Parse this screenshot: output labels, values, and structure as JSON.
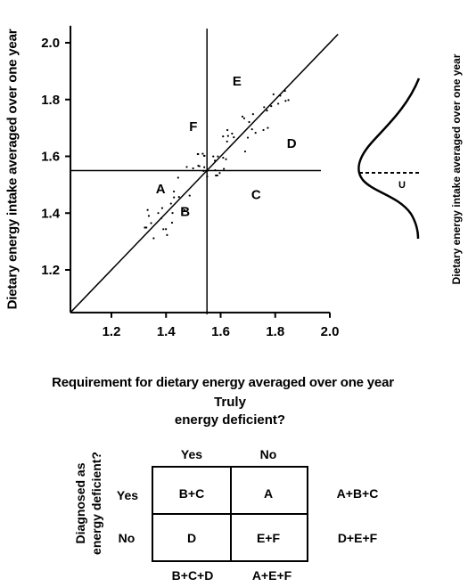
{
  "chart_data": {
    "type": "scatter",
    "xlabel": "Requirement for dietary energy averaged over one year",
    "ylabel": "Dietary energy intake averaged over one year",
    "xlim": [
      1.05,
      2.0
    ],
    "ylim": [
      1.05,
      2.05
    ],
    "xticks": [
      "1.2",
      "1.4",
      "1.6",
      "1.8",
      "2.0"
    ],
    "yticks": [
      "1.2",
      "1.4",
      "1.6",
      "1.8",
      "2.0"
    ],
    "reference_line": "y = x",
    "threshold": 1.55,
    "region_labels": [
      {
        "label": "A",
        "x": 1.38,
        "y": 1.47
      },
      {
        "label": "B",
        "x": 1.47,
        "y": 1.39
      },
      {
        "label": "C",
        "x": 1.73,
        "y": 1.45
      },
      {
        "label": "D",
        "x": 1.86,
        "y": 1.63
      },
      {
        "label": "E",
        "x": 1.66,
        "y": 1.85
      },
      {
        "label": "F",
        "x": 1.5,
        "y": 1.69
      }
    ],
    "side_distribution_label": "Dietary energy intake averaged over one year",
    "side_distribution_marker": "U"
  },
  "matrix": {
    "title_line1": "Truly",
    "title_line2": "energy deficient?",
    "ylabel_line1": "Diagnosed as",
    "ylabel_line2": "energy deficient?",
    "col_yes": "Yes",
    "col_no": "No",
    "row_yes": "Yes",
    "row_no": "No",
    "cell_yes_yes": "B+C",
    "cell_yes_no": "A",
    "cell_no_yes": "D",
    "cell_no_no": "E+F",
    "row_total_yes": "A+B+C",
    "row_total_no": "D+E+F",
    "col_total_yes": "B+C+D",
    "col_total_no": "A+E+F"
  }
}
